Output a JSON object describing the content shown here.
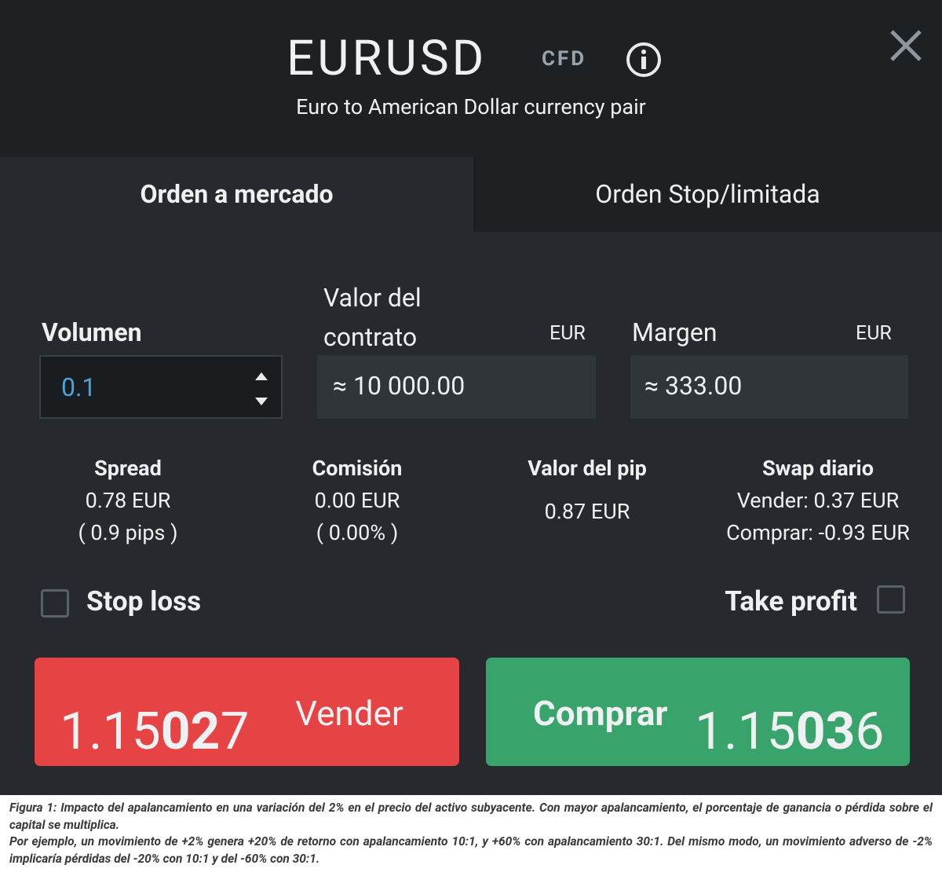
{
  "header": {
    "symbol": "EURUSD",
    "badge": "CFD",
    "subtitle": "Euro to American Dollar currency pair"
  },
  "tabs": [
    "Orden a mercado",
    "Orden Stop/limitada"
  ],
  "fields": [
    {
      "label": "Volumen",
      "value": "0.1"
    },
    {
      "label": "Valor del contrato",
      "unit": "EUR",
      "value": "≈ 10 000.00"
    },
    {
      "label": "Margen",
      "unit": "EUR",
      "value": "≈ 333.00"
    }
  ],
  "stats": [
    {
      "title": "Spread",
      "lines": [
        "0.78 EUR",
        "( 0.9 pips )"
      ]
    },
    {
      "title": "Comisión",
      "lines": [
        "0.00 EUR",
        "( 0.00% )"
      ]
    },
    {
      "title": "Valor del pip",
      "lines": [
        "0.87 EUR"
      ]
    },
    {
      "title": "Swap diario",
      "lines": [
        "Vender: 0.37 EUR",
        "Comprar: -0.93 EUR"
      ]
    }
  ],
  "checkboxes": [
    "Stop loss",
    "Take profit"
  ],
  "sell": {
    "label": "Vender",
    "price": [
      "1.15",
      "02",
      "7"
    ]
  },
  "buy": {
    "label": "Comprar",
    "price": [
      "1.15",
      "03",
      "6"
    ]
  },
  "caption": [
    "Figura 1: Impacto del apalancamiento en una variación del 2% en el precio del activo subyacente. Con mayor apalancamiento, el porcentaje de ganancia o pérdida sobre el capital se multiplica.",
    "Por ejemplo, un movimiento de +2% genera +20% de retorno con apalancamiento 10:1, y +60% con apalancamiento 30:1. Del mismo modo, un movimiento adverso de -2% implicaría pérdidas del -20% con 10:1 y del -60% con 30:1."
  ]
}
